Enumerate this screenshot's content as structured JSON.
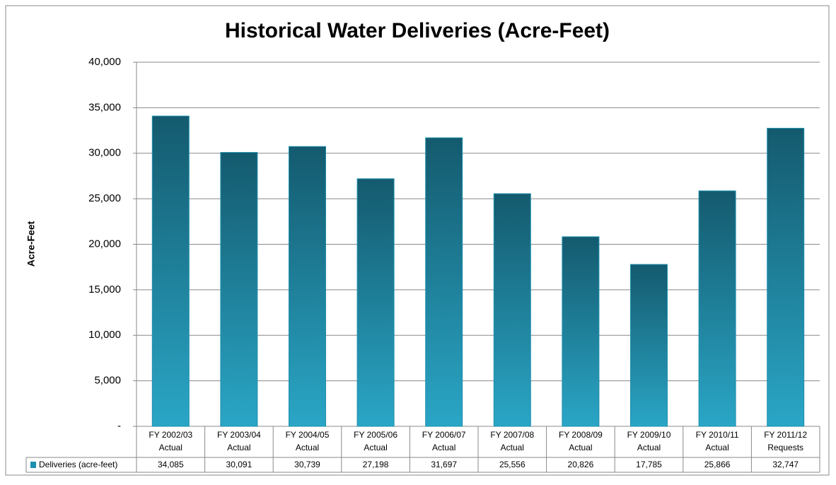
{
  "chart_data": {
    "type": "bar",
    "title": "Historical Water Deliveries (Acre-Feet)",
    "y_label": "Acre-Feet",
    "categories": [
      [
        "FY 2002/03",
        "Actual"
      ],
      [
        "FY 2003/04",
        "Actual"
      ],
      [
        "FY 2004/05",
        "Actual"
      ],
      [
        "FY 2005/06",
        "Actual"
      ],
      [
        "FY 2006/07",
        "Actual"
      ],
      [
        "FY 2007/08",
        "Actual"
      ],
      [
        "FY 2008/09",
        "Actual"
      ],
      [
        "FY 2009/10",
        "Actual"
      ],
      [
        "FY 2010/11",
        "Actual"
      ],
      [
        "FY 2011/12",
        "Requests"
      ]
    ],
    "series": [
      {
        "name": "Deliveries (acre-feet)",
        "color": "#1f8fae",
        "values": [
          34085,
          30091,
          30739,
          27198,
          31697,
          25556,
          20826,
          17785,
          25866,
          32747
        ],
        "value_labels": [
          "34,085",
          "30,091",
          "30,739",
          "27,198",
          "31,697",
          "25,556",
          "20,826",
          "17,785",
          "25,866",
          "32,747"
        ]
      }
    ],
    "ylim": [
      0,
      40000
    ],
    "yticks": [
      {
        "value": 0,
        "label": "-"
      },
      {
        "value": 5000,
        "label": "5,000"
      },
      {
        "value": 10000,
        "label": "10,000"
      },
      {
        "value": 15000,
        "label": "15,000"
      },
      {
        "value": 20000,
        "label": "20,000"
      },
      {
        "value": 25000,
        "label": "25,000"
      },
      {
        "value": 30000,
        "label": "30,000"
      },
      {
        "value": 35000,
        "label": "35,000"
      },
      {
        "value": 40000,
        "label": "40,000"
      }
    ],
    "grid": true
  }
}
